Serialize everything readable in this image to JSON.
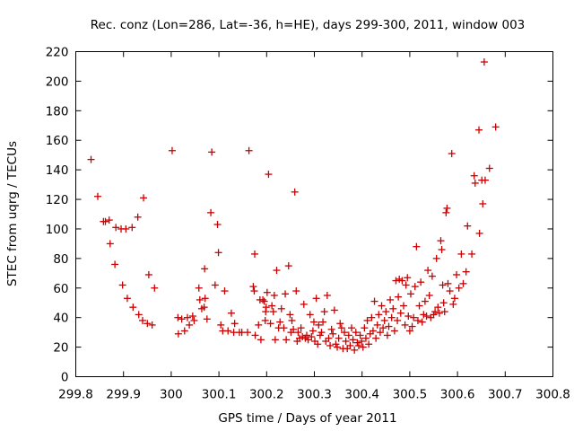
{
  "chart_data": {
    "type": "scatter",
    "title": "Rec. conz (Lon=286, Lat=-36, h=HE), days 299-300, 2011, window 003",
    "xlabel": "GPS time / Days of year 2011",
    "ylabel": "STEC from uqrg / TECUs",
    "xlim": [
      299.8,
      300.8
    ],
    "ylim": [
      0,
      220
    ],
    "xticks": [
      299.8,
      299.9,
      300,
      300.1,
      300.2,
      300.3,
      300.4,
      300.5,
      300.6,
      300.7,
      300.8
    ],
    "xtick_labels": [
      "299.8",
      "299.9",
      "300",
      "300.1",
      "300.2",
      "300.3",
      "300.4",
      "300.5",
      "300.6",
      "300.7",
      "300.8"
    ],
    "yticks": [
      0,
      20,
      40,
      60,
      80,
      100,
      120,
      140,
      160,
      180,
      200,
      220
    ],
    "ytick_labels": [
      "0",
      "20",
      "40",
      "60",
      "80",
      "100",
      "120",
      "140",
      "160",
      "180",
      "200",
      "220"
    ],
    "grid": false,
    "marker": "plus",
    "color": "#cc0000",
    "series": [
      {
        "name": "STEC",
        "points": [
          [
            299.832,
            147
          ],
          [
            299.846,
            122
          ],
          [
            299.858,
            105
          ],
          [
            299.862,
            105
          ],
          [
            299.87,
            106
          ],
          [
            299.872,
            90
          ],
          [
            299.882,
            76
          ],
          [
            299.884,
            101
          ],
          [
            299.895,
            100
          ],
          [
            299.898,
            62
          ],
          [
            299.905,
            100
          ],
          [
            299.908,
            53
          ],
          [
            299.918,
            101
          ],
          [
            299.92,
            47
          ],
          [
            299.93,
            108
          ],
          [
            299.932,
            42
          ],
          [
            299.94,
            38
          ],
          [
            299.942,
            121
          ],
          [
            299.95,
            36
          ],
          [
            299.953,
            69
          ],
          [
            299.96,
            35
          ],
          [
            299.965,
            60
          ],
          [
            300.002,
            153
          ],
          [
            300.014,
            40
          ],
          [
            300.015,
            29
          ],
          [
            300.022,
            39
          ],
          [
            300.028,
            31
          ],
          [
            300.034,
            40
          ],
          [
            300.038,
            35
          ],
          [
            300.045,
            41
          ],
          [
            300.048,
            38
          ],
          [
            300.058,
            60
          ],
          [
            300.06,
            52
          ],
          [
            300.064,
            46
          ],
          [
            300.069,
            47
          ],
          [
            300.07,
            73
          ],
          [
            300.071,
            53
          ],
          [
            300.075,
            39
          ],
          [
            300.083,
            111
          ],
          [
            300.085,
            152
          ],
          [
            300.092,
            62
          ],
          [
            300.097,
            103
          ],
          [
            300.099,
            84
          ],
          [
            300.104,
            35
          ],
          [
            300.108,
            31
          ],
          [
            300.112,
            58
          ],
          [
            300.119,
            31
          ],
          [
            300.126,
            43
          ],
          [
            300.131,
            30
          ],
          [
            300.133,
            36
          ],
          [
            300.143,
            30
          ],
          [
            300.148,
            30
          ],
          [
            300.16,
            30
          ],
          [
            300.163,
            153
          ],
          [
            300.172,
            61
          ],
          [
            300.174,
            58
          ],
          [
            300.175,
            83
          ],
          [
            300.176,
            28
          ],
          [
            300.183,
            35
          ],
          [
            300.186,
            52
          ],
          [
            300.188,
            25
          ],
          [
            300.192,
            52
          ],
          [
            300.195,
            51
          ],
          [
            300.197,
            38
          ],
          [
            300.198,
            44
          ],
          [
            300.199,
            47
          ],
          [
            300.201,
            57
          ],
          [
            300.204,
            137
          ],
          [
            300.208,
            36
          ],
          [
            300.211,
            48
          ],
          [
            300.214,
            44
          ],
          [
            300.216,
            55
          ],
          [
            300.218,
            25
          ],
          [
            300.221,
            72
          ],
          [
            300.225,
            33
          ],
          [
            300.228,
            37
          ],
          [
            300.231,
            46
          ],
          [
            300.236,
            33
          ],
          [
            300.239,
            56
          ],
          [
            300.241,
            25
          ],
          [
            300.246,
            75
          ],
          [
            300.249,
            42
          ],
          [
            300.251,
            30
          ],
          [
            300.253,
            38
          ],
          [
            300.256,
            32
          ],
          [
            300.259,
            125
          ],
          [
            300.262,
            58
          ],
          [
            300.264,
            24
          ],
          [
            300.266,
            30
          ],
          [
            300.269,
            26
          ],
          [
            300.272,
            33
          ],
          [
            300.275,
            27
          ],
          [
            300.278,
            49
          ],
          [
            300.281,
            26
          ],
          [
            300.284,
            28
          ],
          [
            300.287,
            25
          ],
          [
            300.291,
            42
          ],
          [
            300.294,
            27
          ],
          [
            300.297,
            31
          ],
          [
            300.299,
            37
          ],
          [
            300.301,
            24
          ],
          [
            300.304,
            53
          ],
          [
            300.307,
            22
          ],
          [
            300.309,
            35
          ],
          [
            300.312,
            28
          ],
          [
            300.315,
            30
          ],
          [
            300.318,
            37
          ],
          [
            300.321,
            44
          ],
          [
            300.324,
            24
          ],
          [
            300.327,
            55
          ],
          [
            300.33,
            26
          ],
          [
            300.333,
            21
          ],
          [
            300.336,
            32
          ],
          [
            300.339,
            29
          ],
          [
            300.342,
            45
          ],
          [
            300.345,
            22
          ],
          [
            300.348,
            20
          ],
          [
            300.351,
            26
          ],
          [
            300.354,
            36
          ],
          [
            300.357,
            33
          ],
          [
            300.36,
            19
          ],
          [
            300.363,
            30
          ],
          [
            300.366,
            24
          ],
          [
            300.369,
            19
          ],
          [
            300.372,
            28
          ],
          [
            300.375,
            21
          ],
          [
            300.378,
            33
          ],
          [
            300.381,
            25
          ],
          [
            300.384,
            18
          ],
          [
            300.387,
            30
          ],
          [
            300.39,
            23
          ],
          [
            300.393,
            21
          ],
          [
            300.396,
            28
          ],
          [
            300.399,
            24
          ],
          [
            300.402,
            20
          ],
          [
            300.405,
            33
          ],
          [
            300.408,
            26
          ],
          [
            300.411,
            38
          ],
          [
            300.414,
            22
          ],
          [
            300.417,
            29
          ],
          [
            300.42,
            40
          ],
          [
            300.423,
            31
          ],
          [
            300.426,
            51
          ],
          [
            300.429,
            26
          ],
          [
            300.432,
            35
          ],
          [
            300.435,
            42
          ],
          [
            300.438,
            30
          ],
          [
            300.441,
            48
          ],
          [
            300.444,
            33
          ],
          [
            300.447,
            38
          ],
          [
            300.45,
            44
          ],
          [
            300.453,
            28
          ],
          [
            300.456,
            34
          ],
          [
            300.459,
            52
          ],
          [
            300.462,
            40
          ],
          [
            300.465,
            46
          ],
          [
            300.468,
            31
          ],
          [
            300.471,
            65
          ],
          [
            300.474,
            38
          ],
          [
            300.476,
            54
          ],
          [
            300.478,
            66
          ],
          [
            300.481,
            43
          ],
          [
            300.484,
            65
          ],
          [
            300.487,
            48
          ],
          [
            300.49,
            35
          ],
          [
            300.492,
            62
          ],
          [
            300.495,
            67
          ],
          [
            300.497,
            41
          ],
          [
            300.5,
            31
          ],
          [
            300.502,
            56
          ],
          [
            300.505,
            34
          ],
          [
            300.508,
            40
          ],
          [
            300.511,
            61
          ],
          [
            300.514,
            88
          ],
          [
            300.517,
            38
          ],
          [
            300.52,
            48
          ],
          [
            300.523,
            64
          ],
          [
            300.526,
            37
          ],
          [
            300.529,
            42
          ],
          [
            300.532,
            51
          ],
          [
            300.535,
            41
          ],
          [
            300.538,
            72
          ],
          [
            300.541,
            55
          ],
          [
            300.544,
            40
          ],
          [
            300.547,
            68
          ],
          [
            300.55,
            42
          ],
          [
            300.553,
            44
          ],
          [
            300.556,
            80
          ],
          [
            300.559,
            47
          ],
          [
            300.562,
            43
          ],
          [
            300.565,
            92
          ],
          [
            300.567,
            86
          ],
          [
            300.569,
            62
          ],
          [
            300.571,
            50
          ],
          [
            300.573,
            44
          ],
          [
            300.576,
            111
          ],
          [
            300.578,
            114
          ],
          [
            300.58,
            63
          ],
          [
            300.584,
            58
          ],
          [
            300.588,
            151
          ],
          [
            300.591,
            49
          ],
          [
            300.594,
            53
          ],
          [
            300.598,
            69
          ],
          [
            300.603,
            60
          ],
          [
            300.608,
            83
          ],
          [
            300.612,
            63
          ],
          [
            300.618,
            71
          ],
          [
            300.621,
            102
          ],
          [
            300.63,
            83
          ],
          [
            300.635,
            136
          ],
          [
            300.637,
            131
          ],
          [
            300.645,
            167
          ],
          [
            300.646,
            97
          ],
          [
            300.651,
            133
          ],
          [
            300.653,
            117
          ],
          [
            300.656,
            213
          ],
          [
            300.658,
            133
          ],
          [
            300.667,
            141
          ],
          [
            300.68,
            169
          ]
        ]
      }
    ]
  }
}
